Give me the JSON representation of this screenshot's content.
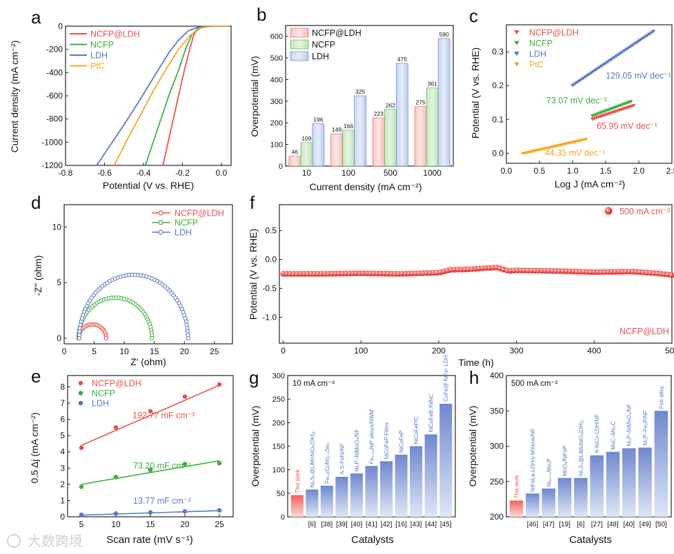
{
  "figure": {
    "watermark": "大数跨境",
    "colors": {
      "ncfpldh": "#e8514d",
      "ncfp": "#3fae3f",
      "ldh": "#5a78c2",
      "ptc": "#f5a623",
      "red_light": "#f6c2c0",
      "green_light": "#cde8c7",
      "blue_light": "#cdd9f0"
    }
  },
  "chart_data": [
    {
      "id": "a",
      "panel_label": "a",
      "type": "line",
      "xlabel": "Potential (V vs. RHE)",
      "ylabel": "Current density (mA cm⁻²)",
      "xlim": [
        -0.8,
        0.05
      ],
      "ylim": [
        -1200,
        0
      ],
      "xticks": [
        "-0.8",
        "-0.6",
        "-0.4",
        "-0.2",
        "0.0"
      ],
      "xtick_values": [
        -0.8,
        -0.6,
        -0.4,
        -0.2,
        0.0
      ],
      "yticks": [
        "0",
        "-200",
        "-400",
        "-600",
        "-800",
        "-1000",
        "-1200"
      ],
      "ytick_values": [
        0,
        -200,
        -400,
        -600,
        -800,
        -1000,
        -1200
      ],
      "legend": [
        "NCFP@LDH",
        "NCFP",
        "LDH",
        "PtC"
      ],
      "series": [
        {
          "name": "NCFP@LDH",
          "color": "#e8514d",
          "x": [
            -0.3,
            -0.26,
            -0.22,
            -0.19,
            -0.16,
            -0.14,
            -0.12,
            -0.1,
            -0.06,
            0.0,
            0.04
          ],
          "y": [
            -1200,
            -900,
            -600,
            -380,
            -180,
            -70,
            -20,
            -4,
            0,
            0,
            0
          ]
        },
        {
          "name": "NCFP",
          "color": "#3fae3f",
          "x": [
            -0.39,
            -0.33,
            -0.27,
            -0.22,
            -0.18,
            -0.15,
            -0.12,
            -0.1,
            -0.06,
            0.0,
            0.04
          ],
          "y": [
            -1200,
            -900,
            -600,
            -380,
            -180,
            -70,
            -20,
            -4,
            0,
            0,
            0
          ]
        },
        {
          "name": "LDH",
          "color": "#5a78c2",
          "x": [
            -0.64,
            -0.58,
            -0.5,
            -0.42,
            -0.34,
            -0.27,
            -0.22,
            -0.17,
            -0.12,
            -0.08,
            0.0,
            0.04
          ],
          "y": [
            -1200,
            -1050,
            -850,
            -640,
            -420,
            -230,
            -120,
            -40,
            -8,
            -1,
            0,
            0
          ]
        },
        {
          "name": "PtC",
          "color": "#f5a623",
          "x": [
            -0.55,
            -0.49,
            -0.42,
            -0.35,
            -0.28,
            -0.22,
            -0.16,
            -0.11,
            -0.07,
            -0.04,
            0.0,
            0.04
          ],
          "y": [
            -1200,
            -1000,
            -780,
            -560,
            -360,
            -200,
            -80,
            -20,
            -4,
            0,
            0,
            0
          ]
        }
      ]
    },
    {
      "id": "b",
      "panel_label": "b",
      "type": "bar",
      "xlabel": "Current density (mA cm⁻²)",
      "ylabel": "Overpotential (mV)",
      "ylim": [
        0,
        650
      ],
      "yticks": [
        "0",
        "100",
        "200",
        "300",
        "400",
        "500",
        "600"
      ],
      "ytick_values": [
        0,
        100,
        200,
        300,
        400,
        500,
        600
      ],
      "categories": [
        "10",
        "100",
        "500",
        "1000"
      ],
      "legend": [
        "NCFP@LDH",
        "NCFP",
        "LDH"
      ],
      "series": [
        {
          "name": "NCFP@LDH",
          "values": [
            46,
            149,
            223,
            275
          ],
          "labels": [
            "46",
            "149",
            "223",
            "275"
          ]
        },
        {
          "name": "NCFP",
          "values": [
            109,
            166,
            262,
            361
          ],
          "labels": [
            "109",
            "166",
            "262",
            "361"
          ]
        },
        {
          "name": "LDH",
          "values": [
            196,
            325,
            475,
            590
          ],
          "labels": [
            "196",
            "325",
            "475",
            "590"
          ]
        }
      ]
    },
    {
      "id": "c",
      "panel_label": "c",
      "type": "scatter",
      "xlabel": "Log J (mA cm⁻²)",
      "ylabel": "Potential (V vs. RHE)",
      "xlim": [
        0.0,
        2.5
      ],
      "ylim": [
        -0.03,
        0.38
      ],
      "xticks": [
        "0.0",
        "0.5",
        "1.0",
        "1.5",
        "2.0",
        "2.5"
      ],
      "xtick_values": [
        0.0,
        0.5,
        1.0,
        1.5,
        2.0,
        2.5
      ],
      "yticks": [
        "0.0",
        "0.1",
        "0.2",
        "0.3"
      ],
      "ytick_values": [
        0.0,
        0.1,
        0.2,
        0.3
      ],
      "legend": [
        "NCFP@LDH",
        "NCFP",
        "LDH",
        "PtC"
      ],
      "series": [
        {
          "name": "NCFP@LDH",
          "x0": 1.3,
          "x1": 1.92,
          "y0": 0.1,
          "y1": 0.14,
          "tafel": "65.95 mV dec⁻¹"
        },
        {
          "name": "NCFP",
          "x0": 1.3,
          "x1": 1.88,
          "y0": 0.11,
          "y1": 0.152,
          "tafel": "73.07 mV dec⁻¹"
        },
        {
          "name": "LDH",
          "x0": 1.0,
          "x1": 2.22,
          "y0": 0.2,
          "y1": 0.36,
          "tafel": "129.05 mV dec⁻¹"
        },
        {
          "name": "PtC",
          "x0": 0.25,
          "x1": 1.2,
          "y0": -0.002,
          "y1": 0.04,
          "tafel": "44.35 mV dec⁻¹"
        }
      ]
    },
    {
      "id": "d",
      "panel_label": "d",
      "type": "scatter",
      "xlabel": "Z' (ohm)",
      "ylabel": "-Z'' (ohm)",
      "xlim": [
        0,
        28
      ],
      "ylim": [
        -0.5,
        12
      ],
      "xticks": [
        "0",
        "5",
        "10",
        "15",
        "20",
        "25"
      ],
      "xtick_values": [
        0,
        5,
        10,
        15,
        20,
        25
      ],
      "yticks": [
        "0",
        "5",
        "10"
      ],
      "ytick_values": [
        0,
        5,
        10
      ],
      "legend": [
        "NCFP@LDH",
        "NCFP",
        "LDH"
      ],
      "series": [
        {
          "name": "NCFP@LDH",
          "r0": 2.4,
          "r1": 7.0,
          "peak": 1.25
        },
        {
          "name": "NCFP",
          "r0": 2.4,
          "r1": 14.6,
          "peak": 3.65
        },
        {
          "name": "LDH",
          "r0": 2.5,
          "r1": 20.6,
          "peak": 5.7
        }
      ]
    },
    {
      "id": "e",
      "panel_label": "e",
      "type": "scatter",
      "xlabel": "Scan rate (mV s⁻¹)",
      "ylabel": "0.5 Δj (mA cm⁻²)",
      "xlim": [
        3,
        27
      ],
      "ylim": [
        0,
        8.7
      ],
      "xticks": [
        "5",
        "10",
        "15",
        "20",
        "25"
      ],
      "xtick_values": [
        5,
        10,
        15,
        20,
        25
      ],
      "yticks": [
        "0",
        "1",
        "2",
        "3",
        "4",
        "5",
        "6",
        "7",
        "8"
      ],
      "ytick_values": [
        0,
        1,
        2,
        3,
        4,
        5,
        6,
        7,
        8
      ],
      "legend": [
        "NCFP@LDH",
        "NCFP",
        "LDH"
      ],
      "series": [
        {
          "name": "NCFP@LDH",
          "x": [
            5,
            10,
            15,
            20,
            25
          ],
          "y": [
            4.25,
            5.5,
            6.5,
            7.4,
            8.15
          ],
          "fit": [
            4.4,
            8.1
          ],
          "cdl": "192.77 mF cm⁻²"
        },
        {
          "name": "NCFP",
          "x": [
            5,
            10,
            15,
            20,
            25
          ],
          "y": [
            1.85,
            2.45,
            2.9,
            3.25,
            3.3
          ],
          "fit": [
            2.0,
            3.45
          ],
          "cdl": "73.20 mF cm⁻²"
        },
        {
          "name": "LDH",
          "x": [
            5,
            10,
            15,
            20,
            25
          ],
          "y": [
            0.12,
            0.2,
            0.27,
            0.33,
            0.4
          ],
          "fit": [
            0.1,
            0.38
          ],
          "cdl": "13.77 mF cm⁻²"
        }
      ]
    },
    {
      "id": "f",
      "panel_label": "f",
      "type": "scatter",
      "xlabel": "Time (h)",
      "ylabel": "Potential (V vs. RHE)",
      "xlim": [
        -5,
        500
      ],
      "ylim": [
        -1.45,
        0.95
      ],
      "xticks": [
        "0",
        "100",
        "200",
        "300",
        "400",
        "500"
      ],
      "xtick_values": [
        0,
        100,
        200,
        300,
        400,
        500
      ],
      "yticks": [
        "0.5",
        "0.0",
        "-0.5",
        "-1.0"
      ],
      "ytick_values": [
        0.5,
        0.0,
        -0.5,
        -1.0
      ],
      "legend": [
        "500 mA cm⁻²"
      ],
      "annotation": "NCFP@LDH",
      "series": [
        {
          "name": "500 mA cm⁻²",
          "x": [
            0,
            50,
            100,
            150,
            200,
            215,
            240,
            260,
            275,
            290,
            300,
            350,
            400,
            450,
            480,
            500
          ],
          "y": [
            -0.25,
            -0.25,
            -0.24,
            -0.25,
            -0.23,
            -0.18,
            -0.17,
            -0.15,
            -0.14,
            -0.2,
            -0.19,
            -0.2,
            -0.22,
            -0.21,
            -0.24,
            -0.27
          ]
        }
      ]
    },
    {
      "id": "g",
      "panel_label": "g",
      "type": "bar",
      "xlabel": "Catalysts",
      "ylabel": "Overpotential (mV)",
      "corner_label": "10 mA cm⁻²",
      "ylim": [
        0,
        300
      ],
      "yticks": [
        "0",
        "50",
        "100",
        "150",
        "200",
        "250",
        "300"
      ],
      "ytick_values": [
        0,
        50,
        100,
        150,
        200,
        250,
        300
      ],
      "categories": [
        "This work",
        "Ni₃S₂@LiMoNiOₓ(OH)ᵧ",
        "Fe₁₈(CoNi)₁.₉Se₈",
        "A-S-FeNi/NF",
        "Ni₂P–NiMoO₄/NF",
        "Fe₂.₀₄NiP alloys/NWM",
        "NiCoFeP Films",
        "NiCoFeP",
        "NiCoFeP/C",
        "NiCoFeB /NiNC",
        "CoFe@ NiFe- LDH"
      ],
      "refs": [
        "",
        "[6]",
        "[38]",
        "[39]",
        "[40]",
        "[41]",
        "[42]",
        "[16]",
        "[43]",
        "[44]",
        "[45]"
      ],
      "values": [
        46,
        58,
        66,
        85,
        92,
        108,
        118,
        132,
        150,
        175,
        240
      ]
    },
    {
      "id": "h",
      "panel_label": "h",
      "type": "bar",
      "xlabel": "Catalysts",
      "ylabel": "Overpotential (mV)",
      "corner_label": "500 mA cm⁻²",
      "ylim": [
        200,
        400
      ],
      "yticks": [
        "200",
        "250",
        "300",
        "350",
        "400"
      ],
      "ytick_values": [
        200,
        250,
        300,
        350,
        400
      ],
      "categories": [
        "This work",
        "NiFeLa-LDH/v-MXene/NF",
        "Ni₄₁.₁₁Mo₂P",
        "MnOₓ/NiFeP",
        "Ni₃S₂@LiMoNiOₓ(OH)ᵧ",
        "A-NiCo LDH/NF",
        "MoC–Mo₂C",
        "Ni₂P–NiMoO₄/NF",
        "Ni₂P–Fe₂P/NF",
        "FeIr alloy"
      ],
      "refs": [
        "",
        "[46]",
        "[47]",
        "[19]",
        "[6]",
        "[27]",
        "[48]",
        "[40]",
        "[49]",
        "[50]"
      ],
      "values": [
        223,
        233,
        240,
        255,
        255,
        287,
        292,
        297,
        298,
        350
      ]
    }
  ]
}
